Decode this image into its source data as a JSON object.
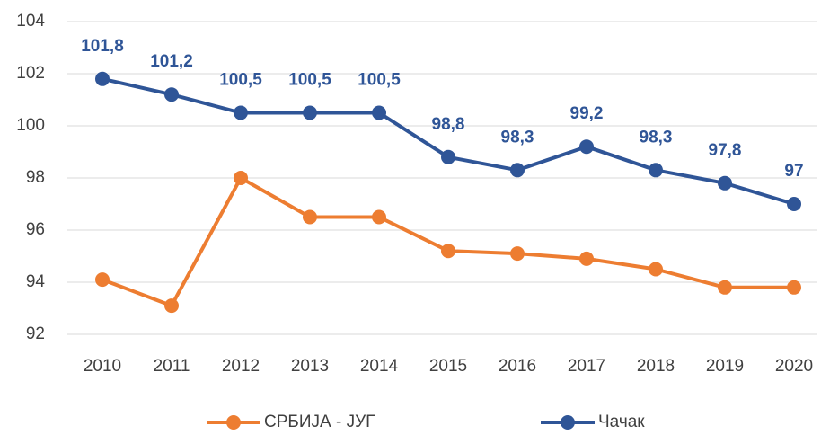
{
  "chart_data": {
    "type": "line",
    "categories": [
      "2010",
      "2011",
      "2012",
      "2013",
      "2014",
      "2015",
      "2016",
      "2017",
      "2018",
      "2019",
      "2020"
    ],
    "series": [
      {
        "name": "СРБИЈА - ЈУГ",
        "color": "#ed7d31",
        "values": [
          94.1,
          93.1,
          98.0,
          96.5,
          96.5,
          95.2,
          95.1,
          94.9,
          94.5,
          93.8,
          93.8
        ]
      },
      {
        "name": "Чачак",
        "color": "#2f5597",
        "values": [
          101.8,
          101.2,
          100.5,
          100.5,
          100.5,
          98.8,
          98.3,
          99.2,
          98.3,
          97.8,
          97
        ],
        "value_labels": [
          "101,8",
          "101,2",
          "100,5",
          "100,5",
          "100,5",
          "98,8",
          "98,3",
          "99,2",
          "98,3",
          "97,8",
          "97"
        ]
      }
    ],
    "ylim": [
      92,
      104
    ],
    "yticks": [
      92,
      94,
      96,
      98,
      100,
      102,
      104
    ],
    "grid": true,
    "legend": "bottom"
  }
}
